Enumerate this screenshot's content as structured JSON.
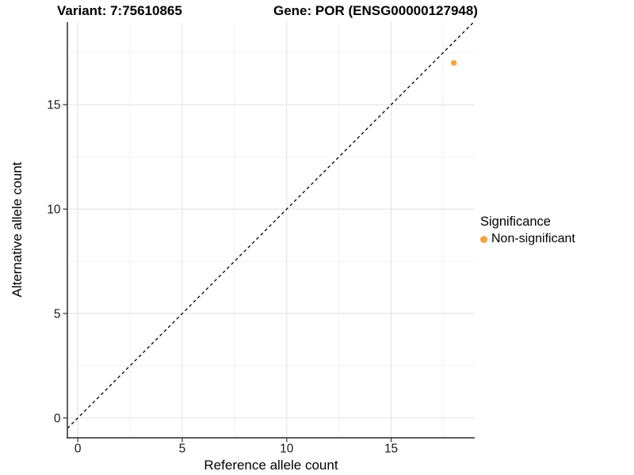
{
  "chart_data": {
    "type": "scatter",
    "title_left": "Variant: 7:75610865",
    "title_right": "Gene: POR (ENSG00000127948)",
    "xlabel": "Reference allele count",
    "ylabel": "Alternative allele count",
    "xlim": [
      -0.5,
      19.0
    ],
    "ylim": [
      -0.95,
      18.95
    ],
    "x_ticks": [
      0,
      5,
      10,
      15
    ],
    "y_ticks": [
      0,
      5,
      10,
      15
    ],
    "x_minor_ticks": [
      2.5,
      7.5,
      12.5,
      17.5
    ],
    "y_minor_ticks": [
      2.5,
      7.5,
      12.5,
      17.5
    ],
    "grid": true,
    "reference_line": {
      "kind": "identity y=x",
      "style": "dashed",
      "color": "#000000"
    },
    "series": [
      {
        "name": "Non-significant",
        "color": "#F9A13B",
        "points": [
          {
            "x": 18,
            "y": 17
          }
        ]
      }
    ],
    "legend": {
      "title": "Significance",
      "position": "right",
      "items": [
        {
          "label": "Non-significant",
          "color": "#F9A13B"
        }
      ]
    },
    "colors": {
      "background": "#FFFFFF",
      "grid_major": "#E5E5E5",
      "grid_minor": "#F1F1F1",
      "axis_line": "#454545",
      "tick_mark": "#3F3F3F",
      "tick_text": "#1A1A1A",
      "title_text": "#000000"
    }
  }
}
